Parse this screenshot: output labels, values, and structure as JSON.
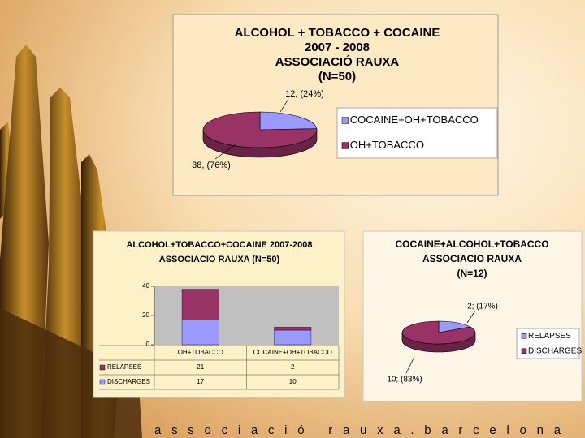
{
  "chart_data": [
    {
      "type": "pie",
      "title": [
        "ALCOHOL + TOBACCO + COCAINE",
        "2007 - 2008",
        "ASSOCIACIÓ RAUXA",
        "(N=50)"
      ],
      "categories": [
        "COCAINE+OH+TOBACCO",
        "OH+TOBACCO"
      ],
      "values": [
        12,
        38
      ],
      "value_labels": [
        "12, (24%)",
        "38, (76%)"
      ],
      "colors": [
        "#9999ff",
        "#993366"
      ]
    },
    {
      "type": "bar",
      "title": [
        "ALCOHOL+TOBACCO+COCAINE 2007-2008",
        "ASSOCIACIO RAUXA (N=50)"
      ],
      "categories": [
        "OH+TOBACCO",
        "COCAINE+OH+TOBACCO"
      ],
      "stacked": true,
      "series": [
        {
          "name": "RELAPSES",
          "color": "#993366",
          "values": [
            21,
            2
          ]
        },
        {
          "name": "DISCHARGES",
          "color": "#9999ff",
          "values": [
            17,
            10
          ]
        }
      ],
      "ylim": [
        0,
        40
      ],
      "yticks": [
        0,
        20,
        40
      ]
    },
    {
      "type": "pie",
      "title": [
        "COCAINE+ALCOHOL+TOBACCO",
        "ASSOCIACIO RAUXA",
        "(N=12)"
      ],
      "categories": [
        "RELAPSES",
        "DISCHARGES"
      ],
      "values": [
        2,
        10
      ],
      "value_labels": [
        "2; (17%)",
        "10; (83%)"
      ],
      "colors": [
        "#9999ff",
        "#993366"
      ]
    }
  ],
  "footer": "associació rauxa.barcelona"
}
